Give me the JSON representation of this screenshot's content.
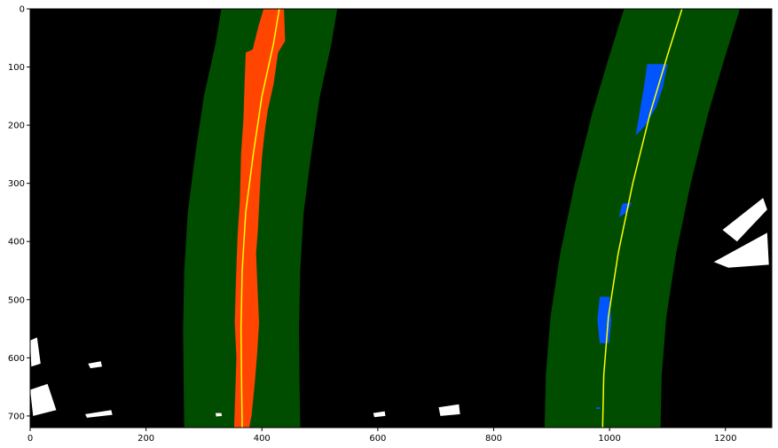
{
  "chart_data": {
    "type": "image",
    "title": "",
    "xlabel": "",
    "ylabel": "",
    "xlim": [
      0,
      1280
    ],
    "ylim": [
      720,
      0
    ],
    "xticks": [
      0,
      200,
      400,
      600,
      800,
      1000,
      1200
    ],
    "yticks": [
      0,
      100,
      200,
      300,
      400,
      500,
      600,
      700
    ],
    "xtick_labels": [
      "0",
      "200",
      "400",
      "600",
      "800",
      "1000",
      "1200"
    ],
    "ytick_labels": [
      "0",
      "100",
      "200",
      "300",
      "400",
      "500",
      "600",
      "700"
    ],
    "grid": false,
    "background_color": "#000000",
    "lane_window_color": "#004d00",
    "left_lane_pixel_color": "#ff4500",
    "right_lane_pixel_color": "#0055ff",
    "fit_line_color": "#ffff00",
    "other_pixel_color": "#ffffff",
    "lanes": [
      {
        "side": "left",
        "fit_points": [
          [
            430,
            0
          ],
          [
            420,
            60
          ],
          [
            400,
            150
          ],
          [
            385,
            250
          ],
          [
            372,
            350
          ],
          [
            366,
            450
          ],
          [
            364,
            550
          ],
          [
            365,
            650
          ],
          [
            366,
            720
          ]
        ],
        "window_half_width": 100
      },
      {
        "side": "right",
        "fit_points": [
          [
            1125,
            0
          ],
          [
            1100,
            80
          ],
          [
            1070,
            180
          ],
          [
            1040,
            300
          ],
          [
            1015,
            420
          ],
          [
            998,
            530
          ],
          [
            990,
            630
          ],
          [
            988,
            720
          ]
        ],
        "window_half_width": 100
      }
    ],
    "left_lane_pixels": [
      [
        [
          403,
          0
        ],
        [
          438,
          0
        ],
        [
          440,
          55
        ],
        [
          428,
          75
        ],
        [
          420,
          130
        ],
        [
          410,
          175
        ],
        [
          405,
          210
        ],
        [
          400,
          255
        ],
        [
          397,
          300
        ],
        [
          393,
          380
        ],
        [
          390,
          420
        ],
        [
          392,
          470
        ],
        [
          395,
          540
        ],
        [
          392,
          590
        ],
        [
          388,
          640
        ],
        [
          382,
          700
        ],
        [
          378,
          720
        ],
        [
          352,
          720
        ],
        [
          354,
          660
        ],
        [
          356,
          600
        ],
        [
          353,
          540
        ],
        [
          355,
          470
        ],
        [
          358,
          390
        ],
        [
          362,
          330
        ],
        [
          364,
          250
        ],
        [
          368,
          190
        ],
        [
          370,
          130
        ],
        [
          372,
          75
        ],
        [
          384,
          70
        ],
        [
          394,
          30
        ]
      ]
    ],
    "right_lane_pixels": [
      [
        [
          1065,
          95
        ],
        [
          1100,
          95
        ],
        [
          1092,
          135
        ],
        [
          1080,
          170
        ],
        [
          1062,
          200
        ],
        [
          1045,
          218
        ],
        [
          1050,
          190
        ],
        [
          1055,
          160
        ],
        [
          1060,
          130
        ]
      ],
      [
        [
          1022,
          335
        ],
        [
          1038,
          333
        ],
        [
          1030,
          350
        ],
        [
          1016,
          358
        ]
      ],
      [
        [
          983,
          495
        ],
        [
          1000,
          495
        ],
        [
          1003,
          535
        ],
        [
          999,
          575
        ],
        [
          983,
          575
        ],
        [
          979,
          535
        ]
      ],
      [
        [
          977,
          685
        ],
        [
          984,
          685
        ],
        [
          984,
          688
        ],
        [
          977,
          688
        ]
      ]
    ],
    "other_pixels": [
      [
        [
          1195,
          380
        ],
        [
          1265,
          325
        ],
        [
          1272,
          345
        ],
        [
          1220,
          400
        ]
      ],
      [
        [
          1180,
          435
        ],
        [
          1272,
          385
        ],
        [
          1275,
          440
        ],
        [
          1205,
          445
        ]
      ],
      [
        [
          0,
          570
        ],
        [
          12,
          565
        ],
        [
          18,
          610
        ],
        [
          2,
          615
        ]
      ],
      [
        [
          0,
          655
        ],
        [
          30,
          645
        ],
        [
          45,
          690
        ],
        [
          5,
          700
        ]
      ],
      [
        [
          100,
          610
        ],
        [
          122,
          606
        ],
        [
          124,
          615
        ],
        [
          104,
          618
        ]
      ],
      [
        [
          95,
          697
        ],
        [
          140,
          690
        ],
        [
          142,
          698
        ],
        [
          98,
          703
        ]
      ],
      [
        [
          592,
          695
        ],
        [
          612,
          692
        ],
        [
          613,
          700
        ],
        [
          594,
          702
        ]
      ],
      [
        [
          705,
          685
        ],
        [
          740,
          680
        ],
        [
          742,
          697
        ],
        [
          708,
          700
        ]
      ],
      [
        [
          320,
          695
        ],
        [
          330,
          695
        ],
        [
          331,
          700
        ],
        [
          321,
          701
        ]
      ]
    ]
  }
}
